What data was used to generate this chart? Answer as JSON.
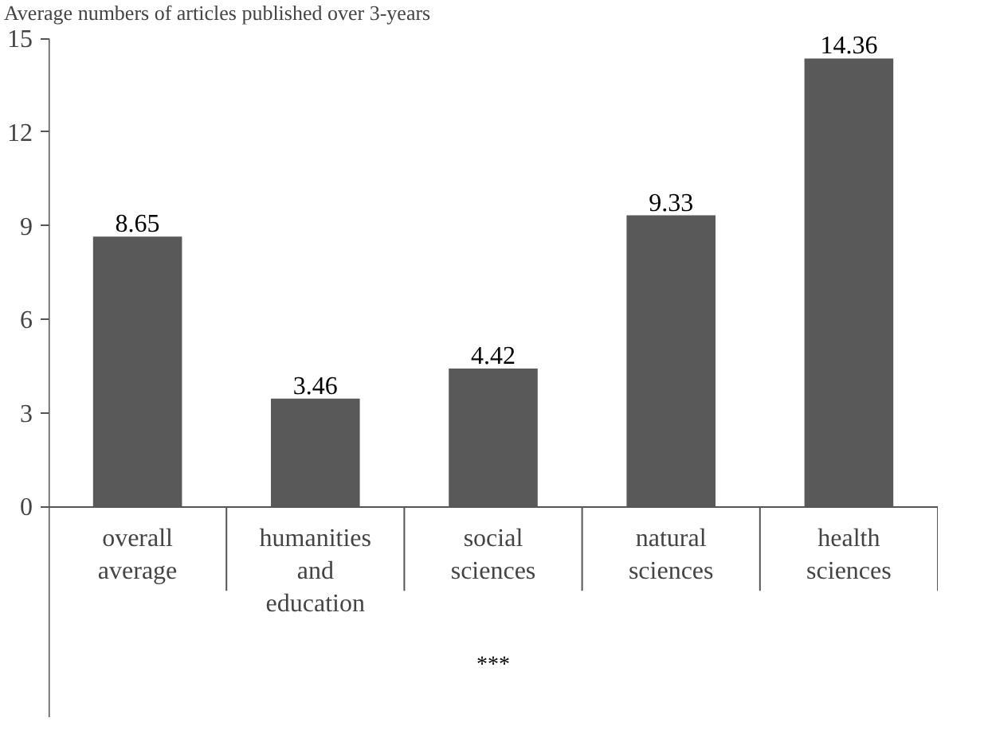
{
  "chart_data": {
    "type": "bar",
    "ylabel": "Average numbers of articles published over 3-years",
    "xlabel": "***",
    "categories": [
      "overall\naverage",
      "humanities\nand\neducation",
      "social\nsciences",
      "natural\nsciences",
      "health\nsciences"
    ],
    "values": [
      8.65,
      3.46,
      4.42,
      9.33,
      14.36
    ],
    "color": "#595959",
    "data_labels": true,
    "ylim": [
      0,
      15
    ],
    "yticks": [
      0,
      3,
      6,
      9,
      12,
      15
    ],
    "grid": false
  }
}
